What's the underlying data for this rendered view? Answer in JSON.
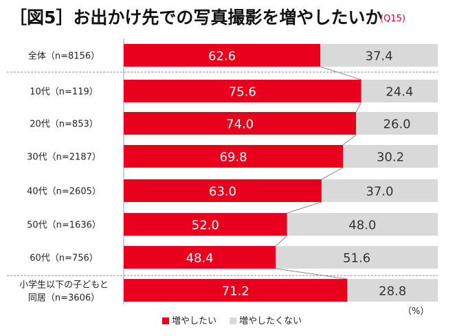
{
  "header": {
    "title": "［図5］お出かけ先での写真撮影を増やしたいか",
    "question": "(Q15)"
  },
  "colors": {
    "increase": "#e8001c",
    "not_increase": "#d9d9d9",
    "title_accent": "#e8001c"
  },
  "chart_data": {
    "type": "bar",
    "orientation": "horizontal",
    "stacked": "100%",
    "unit_label": "（%）",
    "categories": [
      [
        "全体（n=8156）"
      ],
      [
        "10代（n=119）"
      ],
      [
        "20代（n=853）"
      ],
      [
        "30代（n=2187）"
      ],
      [
        "40代（n=2605）"
      ],
      [
        "50代（n=1636）"
      ],
      [
        "60代（n=756）"
      ],
      [
        "小学生以下の子どもと",
        "同居（n=3606）"
      ]
    ],
    "series": [
      {
        "name": "増やしたい",
        "values": [
          "62.6",
          "75.6",
          "74.0",
          "69.8",
          "63.0",
          "52.0",
          "48.4",
          "71.2"
        ]
      },
      {
        "name": "増やしたくない",
        "values": [
          "37.4",
          "24.4",
          "26.0",
          "30.2",
          "37.0",
          "48.0",
          "51.6",
          "28.8"
        ]
      }
    ],
    "xlim": [
      0,
      100
    ],
    "legend": "bottom"
  }
}
